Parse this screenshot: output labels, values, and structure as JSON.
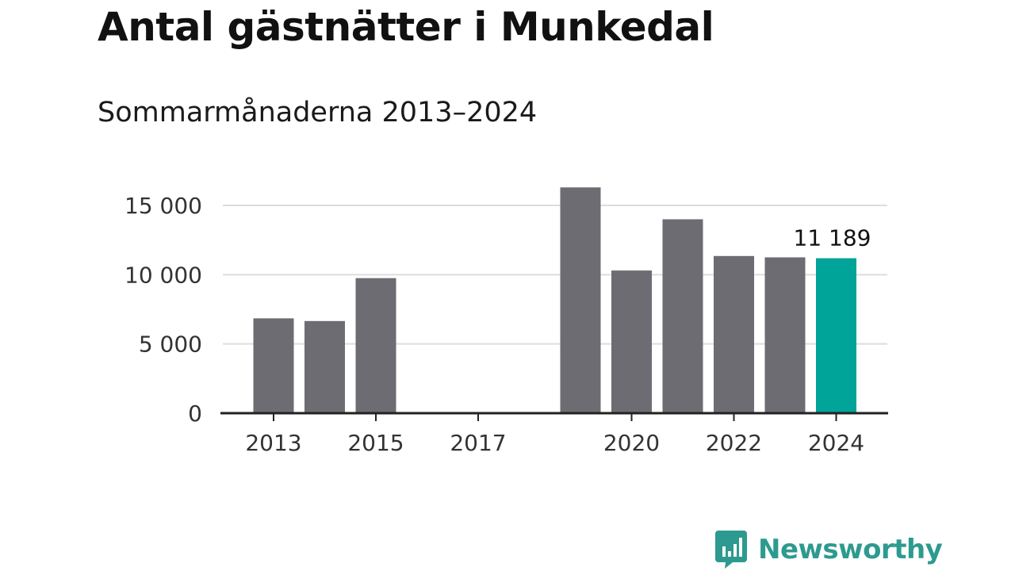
{
  "title": "Antal gästnätter i Munkedal",
  "subtitle": "Sommarmånaderna 2013–2024",
  "chart_data": {
    "type": "bar",
    "categories": [
      "2013",
      "2014",
      "2015",
      "2016",
      "2017",
      "2018",
      "2019",
      "2020",
      "2021",
      "2022",
      "2023",
      "2024"
    ],
    "values": [
      6850,
      6650,
      9750,
      null,
      null,
      null,
      16300,
      10300,
      14000,
      11350,
      11250,
      11189
    ],
    "x_tick_labels": [
      "2013",
      "2015",
      "2017",
      "2020",
      "2022",
      "2024"
    ],
    "y_ticks": [
      0,
      5000,
      10000,
      15000
    ],
    "y_tick_labels": [
      "0",
      "5 000",
      "10 000",
      "15 000"
    ],
    "ylim": [
      0,
      16300
    ],
    "grid": true,
    "highlight": {
      "category": "2024",
      "value_label": "11 189"
    },
    "colors": {
      "bar": "#6d6c72",
      "highlight": "#00a499",
      "grid": "#dddddd",
      "axis": "#222222"
    }
  },
  "brand": {
    "name": "Newsworthy",
    "color": "#2d9a8f",
    "icon": "bar-chart-speech-bubble-icon"
  }
}
